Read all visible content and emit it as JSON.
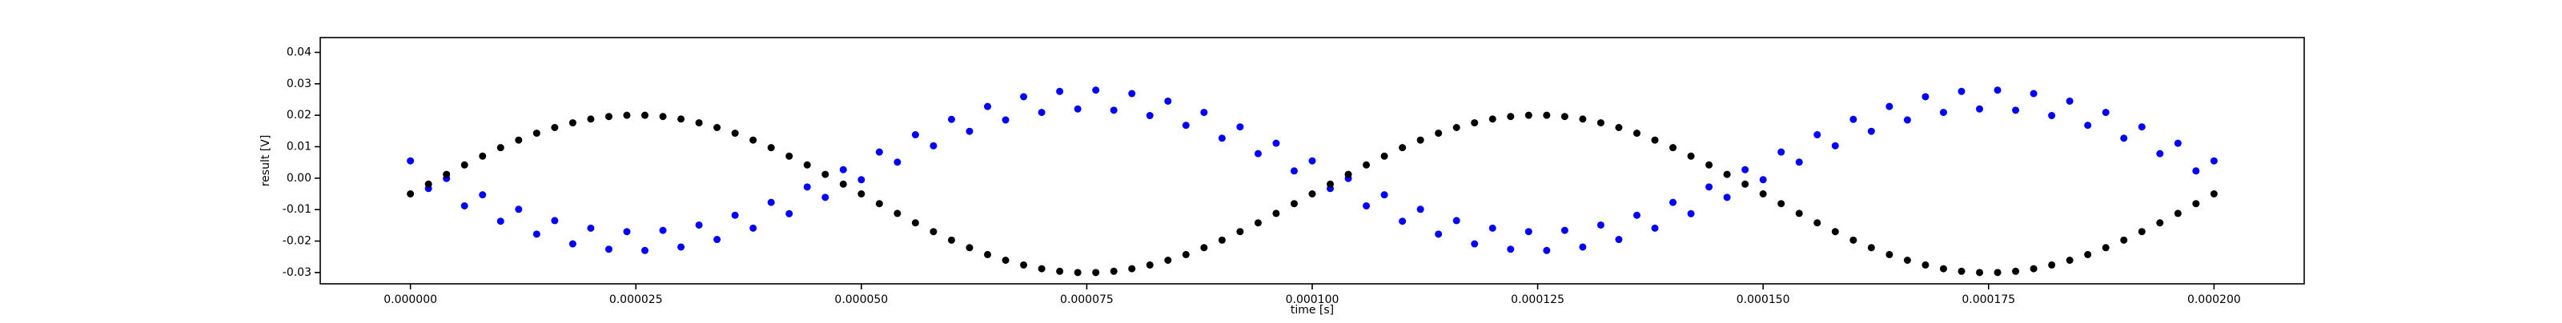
{
  "chart_data": {
    "type": "scatter",
    "xlabel": "time [s]",
    "ylabel": "result [V]",
    "xlim": [
      -1e-05,
      0.00021
    ],
    "ylim": [
      -0.0336,
      0.0447
    ],
    "xticks": [
      {
        "value": 0,
        "label": "0.000000"
      },
      {
        "value": 2.5e-05,
        "label": "0.000025"
      },
      {
        "value": 5e-05,
        "label": "0.000050"
      },
      {
        "value": 7.5e-05,
        "label": "0.000075"
      },
      {
        "value": 0.0001,
        "label": "0.000100"
      },
      {
        "value": 0.000125,
        "label": "0.000125"
      },
      {
        "value": 0.00015,
        "label": "0.000150"
      },
      {
        "value": 0.000175,
        "label": "0.000175"
      },
      {
        "value": 0.0002,
        "label": "0.000200"
      }
    ],
    "yticks": [
      -0.03,
      -0.02,
      -0.01,
      {
        "value": 0,
        "label": "0.00"
      },
      0.01,
      0.02,
      0.03,
      0.04
    ],
    "x": [
      0,
      2e-06,
      4e-06,
      6e-06,
      8e-06,
      1e-05,
      1.2e-05,
      1.4e-05,
      1.6e-05,
      1.8e-05,
      2e-05,
      2.2e-05,
      2.4e-05,
      2.6e-05,
      2.8e-05,
      3e-05,
      3.2e-05,
      3.4e-05,
      3.6e-05,
      3.8e-05,
      4e-05,
      4.2e-05,
      4.4e-05,
      4.6e-05,
      4.8e-05,
      5e-05,
      5.2e-05,
      5.4e-05,
      5.6e-05,
      5.8e-05,
      6e-05,
      6.2e-05,
      6.4e-05,
      6.6e-05,
      6.8e-05,
      7e-05,
      7.2e-05,
      7.4e-05,
      7.6e-05,
      7.8e-05,
      8e-05,
      8.2e-05,
      8.4e-05,
      8.6e-05,
      8.8e-05,
      9e-05,
      9.2e-05,
      9.4e-05,
      9.6e-05,
      9.8e-05,
      0.0001,
      0.000102,
      0.000104,
      0.000106,
      0.000108,
      0.00011,
      0.000112,
      0.000114,
      0.000116,
      0.000118,
      0.00012,
      0.000122,
      0.000124,
      0.000126,
      0.000128,
      0.00013,
      0.000132,
      0.000134,
      0.000136,
      0.000138,
      0.00014,
      0.000142,
      0.000144,
      0.000146,
      0.000148,
      0.00015,
      0.000152,
      0.000154,
      0.000156,
      0.000158,
      0.00016,
      0.000162,
      0.000164,
      0.000166,
      0.000168,
      0.00017,
      0.000172,
      0.000174,
      0.000176,
      0.000178,
      0.00018,
      0.000182,
      0.000184,
      0.000186,
      0.000188,
      0.00019,
      0.000192,
      0.000194,
      0.000196,
      0.000198,
      0.0002
    ],
    "series": [
      {
        "color": "#0000ff",
        "values": [
          0.0055,
          -0.0033,
          -0.0001,
          -0.0088,
          -0.0053,
          -0.0137,
          -0.0099,
          -0.0178,
          -0.0135,
          -0.0209,
          -0.0159,
          -0.0226,
          -0.017,
          -0.023,
          -0.0166,
          -0.0219,
          -0.0149,
          -0.0195,
          -0.0118,
          -0.0159,
          -0.0077,
          -0.0113,
          -0.0028,
          -0.0061,
          0.0027,
          -0.0005,
          0.0083,
          0.0051,
          0.0138,
          0.0103,
          0.0187,
          0.0149,
          0.0228,
          0.0185,
          0.0259,
          0.0209,
          0.0276,
          0.022,
          0.028,
          0.0216,
          0.0269,
          0.0199,
          0.0245,
          0.0168,
          0.0209,
          0.0127,
          0.0163,
          0.0078,
          0.0111,
          0.0023,
          0.0055,
          -0.0033,
          -0.0001,
          -0.0088,
          -0.0053,
          -0.0137,
          -0.0099,
          -0.0178,
          -0.0135,
          -0.0209,
          -0.0159,
          -0.0226,
          -0.017,
          -0.023,
          -0.0166,
          -0.0219,
          -0.0149,
          -0.0195,
          -0.0118,
          -0.0159,
          -0.0077,
          -0.0113,
          -0.0028,
          -0.0061,
          0.0027,
          -0.0005,
          0.0083,
          0.0051,
          0.0138,
          0.0103,
          0.0187,
          0.0149,
          0.0228,
          0.0185,
          0.0259,
          0.0209,
          0.0276,
          0.022,
          0.028,
          0.0216,
          0.0269,
          0.0199,
          0.0245,
          0.0168,
          0.0209,
          0.0127,
          0.0163,
          0.0078,
          0.0111,
          0.0023,
          0.0055
        ]
      },
      {
        "color": "#000000",
        "values": [
          -0.005,
          -0.0019,
          0.0012,
          0.0042,
          0.007,
          0.0097,
          0.0121,
          0.0143,
          0.0161,
          0.0176,
          0.0188,
          0.0196,
          0.02,
          0.02,
          0.0196,
          0.0188,
          0.0176,
          0.0161,
          0.0143,
          0.0121,
          0.0097,
          0.007,
          0.0042,
          0.0012,
          -0.0019,
          -0.005,
          -0.0081,
          -0.0112,
          -0.0142,
          -0.017,
          -0.0197,
          -0.0221,
          -0.0243,
          -0.0261,
          -0.0276,
          -0.0288,
          -0.0296,
          -0.03,
          -0.03,
          -0.0296,
          -0.0288,
          -0.0276,
          -0.0261,
          -0.0243,
          -0.0221,
          -0.0197,
          -0.017,
          -0.0142,
          -0.0112,
          -0.0081,
          -0.005,
          -0.0019,
          0.0012,
          0.0042,
          0.007,
          0.0097,
          0.0121,
          0.0143,
          0.0161,
          0.0176,
          0.0188,
          0.0196,
          0.02,
          0.02,
          0.0196,
          0.0188,
          0.0176,
          0.0161,
          0.0143,
          0.0121,
          0.0097,
          0.007,
          0.0042,
          0.0012,
          -0.0019,
          -0.005,
          -0.0081,
          -0.0112,
          -0.0142,
          -0.017,
          -0.0197,
          -0.0221,
          -0.0243,
          -0.0261,
          -0.0276,
          -0.0288,
          -0.0296,
          -0.03,
          -0.03,
          -0.0296,
          -0.0288,
          -0.0276,
          -0.0261,
          -0.0243,
          -0.0221,
          -0.0197,
          -0.017,
          -0.0142,
          -0.0112,
          -0.0081,
          -0.005
        ]
      }
    ]
  }
}
